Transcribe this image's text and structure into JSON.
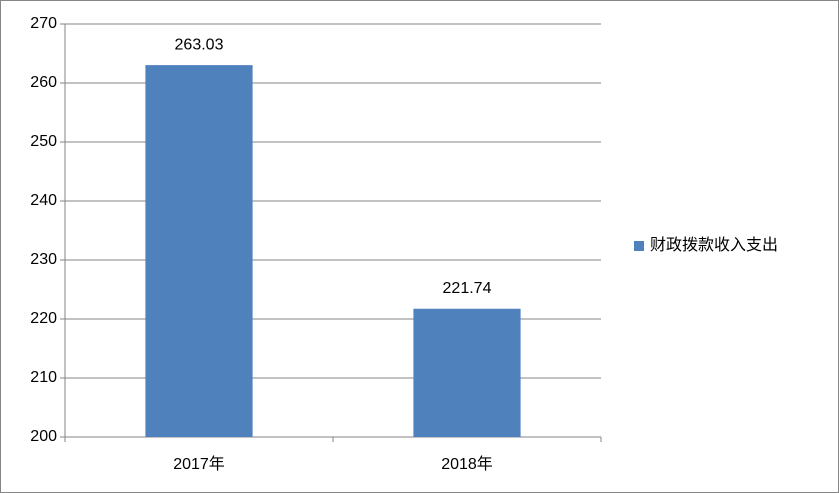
{
  "chart_data": {
    "type": "bar",
    "categories": [
      "2017年",
      "2018年"
    ],
    "series": [
      {
        "name": "财政拨款收入支出",
        "color": "#4f81bd",
        "values": [
          263.03,
          221.74
        ]
      }
    ],
    "ylim": [
      200,
      270
    ],
    "yticks": [
      200,
      210,
      220,
      230,
      240,
      250,
      260,
      270
    ],
    "grid": true,
    "legend": "right"
  }
}
